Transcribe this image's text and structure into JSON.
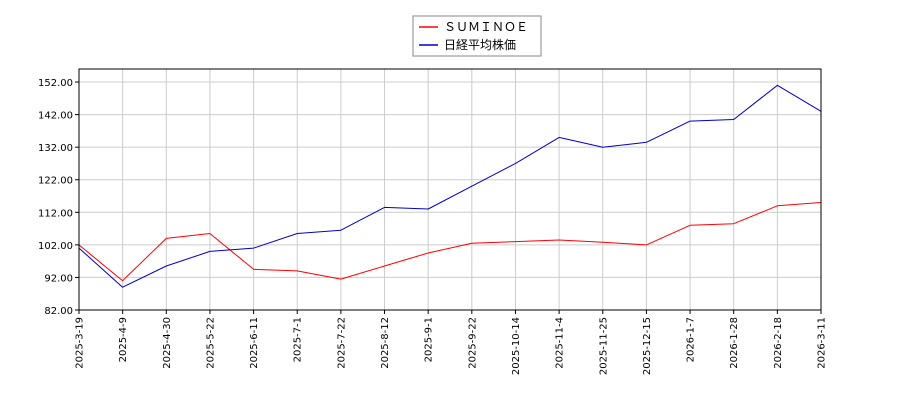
{
  "chart_data": {
    "type": "line",
    "x": [
      "2025-3-19",
      "2025-4-9",
      "2025-4-30",
      "2025-5-22",
      "2025-6-11",
      "2025-7-1",
      "2025-7-22",
      "2025-8-12",
      "2025-9-1",
      "2025-9-22",
      "2025-10-14",
      "2025-11-4",
      "2025-11-25",
      "2025-12-15",
      "2026-1-7",
      "2026-1-28",
      "2026-2-18",
      "2026-3-11"
    ],
    "series": [
      {
        "name": "ＳＵＭＩＮＯＥ",
        "color": "#ff0000",
        "values": [
          102.0,
          91.0,
          104.0,
          105.5,
          94.5,
          94.0,
          91.5,
          95.5,
          99.5,
          102.5,
          103.0,
          103.5,
          102.8,
          102.0,
          108.0,
          108.5,
          114.0,
          115.0
        ]
      },
      {
        "name": "日経平均株価",
        "color": "#0000cc",
        "values": [
          101.0,
          89.0,
          95.5,
          100.0,
          101.0,
          105.5,
          106.5,
          113.5,
          113.0,
          120.0,
          127.0,
          135.0,
          132.0,
          133.5,
          140.0,
          140.5,
          151.0,
          143.0
        ]
      }
    ],
    "yticks": [
      "82.00",
      "92.00",
      "102.00",
      "112.00",
      "122.00",
      "132.00",
      "142.00",
      "152.00"
    ],
    "ylim": [
      82,
      156
    ],
    "grid": true,
    "legend_position": "top-center"
  }
}
